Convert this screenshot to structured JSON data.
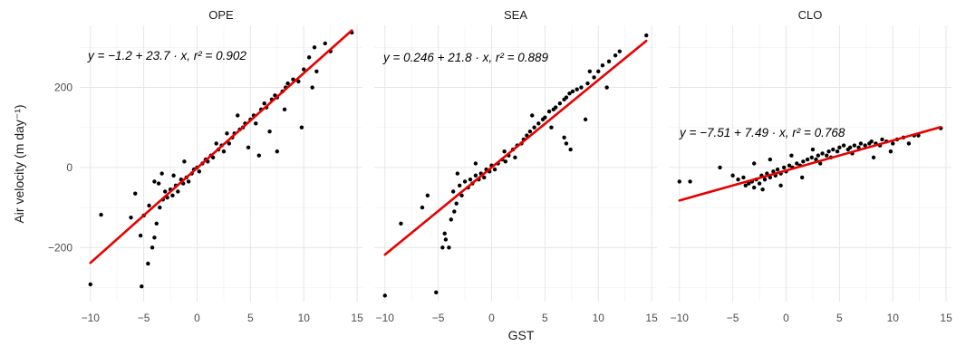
{
  "chart_data": {
    "type": "scatter",
    "xlabel": "GST",
    "ylabel": "Air velocity (m day⁻¹)",
    "xlim": [
      -11,
      15.5
    ],
    "ylim": [
      -335,
      355
    ],
    "xticks": [
      -10,
      -5,
      0,
      5,
      10,
      15
    ],
    "yticks": [
      -200,
      0,
      200
    ],
    "grid": true,
    "panels": [
      {
        "title": "OPE",
        "equation": "y = −1.2 + 23.7 · x,  r² = 0.902",
        "intercept": -1.2,
        "slope": 23.7,
        "r2": 0.902,
        "fit_range": [
          -10,
          14.5
        ],
        "points": [
          [
            -10,
            -292
          ],
          [
            -9,
            -118
          ],
          [
            -5.2,
            -297
          ],
          [
            -5,
            -120
          ],
          [
            -5.3,
            -170
          ],
          [
            -4.6,
            -240
          ],
          [
            -4.2,
            -200
          ],
          [
            -4,
            -175
          ],
          [
            -4.5,
            -95
          ],
          [
            -3.8,
            -140
          ],
          [
            -3.5,
            -100
          ],
          [
            -3.2,
            -80
          ],
          [
            -3.6,
            -40
          ],
          [
            -3,
            -60
          ],
          [
            -2.8,
            -75
          ],
          [
            -2.5,
            -55
          ],
          [
            -2.3,
            -70
          ],
          [
            -2,
            -45
          ],
          [
            -1.8,
            -60
          ],
          [
            -1.5,
            -30
          ],
          [
            -1.3,
            -40
          ],
          [
            -1,
            -25
          ],
          [
            -0.8,
            -35
          ],
          [
            -0.5,
            -15
          ],
          [
            -0.3,
            -5
          ],
          [
            0,
            0
          ],
          [
            0.2,
            -10
          ],
          [
            0.5,
            10
          ],
          [
            0.8,
            20
          ],
          [
            1,
            15
          ],
          [
            1.3,
            30
          ],
          [
            1.5,
            25
          ],
          [
            2,
            45
          ],
          [
            2.3,
            55
          ],
          [
            2.5,
            40
          ],
          [
            3,
            60
          ],
          [
            3.3,
            75
          ],
          [
            3.5,
            85
          ],
          [
            4,
            95
          ],
          [
            4.3,
            100
          ],
          [
            4.5,
            110
          ],
          [
            5,
            120
          ],
          [
            5.3,
            130
          ],
          [
            5.5,
            110
          ],
          [
            6,
            145
          ],
          [
            6.3,
            160
          ],
          [
            6.5,
            150
          ],
          [
            7,
            170
          ],
          [
            7.3,
            180
          ],
          [
            7.5,
            175
          ],
          [
            8,
            190
          ],
          [
            8.3,
            200
          ],
          [
            8.5,
            210
          ],
          [
            9,
            220
          ],
          [
            9.5,
            215
          ],
          [
            10,
            245
          ],
          [
            10.5,
            275
          ],
          [
            11,
            300
          ],
          [
            12,
            310
          ],
          [
            12.5,
            290
          ],
          [
            14.5,
            337
          ],
          [
            5.8,
            30
          ],
          [
            7.5,
            40
          ],
          [
            9.8,
            100
          ],
          [
            4.8,
            50
          ],
          [
            6.8,
            90
          ],
          [
            10.8,
            200
          ],
          [
            11.2,
            240
          ],
          [
            -5.8,
            -65
          ],
          [
            -6.2,
            -125
          ],
          [
            -4,
            -35
          ],
          [
            -2.2,
            -20
          ],
          [
            1.8,
            60
          ],
          [
            2.8,
            85
          ],
          [
            -3.3,
            -15
          ],
          [
            -1.2,
            15
          ],
          [
            3.8,
            130
          ],
          [
            8.2,
            145
          ]
        ]
      },
      {
        "title": "SEA",
        "equation": "y = 0.246 + 21.8 · x,  r² = 0.889",
        "intercept": 0.246,
        "slope": 21.8,
        "r2": 0.889,
        "fit_range": [
          -10,
          14.5
        ],
        "points": [
          [
            -10,
            -320
          ],
          [
            -8.5,
            -140
          ],
          [
            -5.2,
            -312
          ],
          [
            -4.6,
            -200
          ],
          [
            -4.3,
            -180
          ],
          [
            -4.4,
            -165
          ],
          [
            -4,
            -200
          ],
          [
            -3.8,
            -130
          ],
          [
            -3.5,
            -110
          ],
          [
            -3.3,
            -90
          ],
          [
            -3.6,
            -60
          ],
          [
            -3,
            -45
          ],
          [
            -2.8,
            -70
          ],
          [
            -2.5,
            -35
          ],
          [
            -2.2,
            -50
          ],
          [
            -2,
            -30
          ],
          [
            -1.8,
            -40
          ],
          [
            -1.5,
            -20
          ],
          [
            -1.2,
            -30
          ],
          [
            -1,
            -15
          ],
          [
            -0.7,
            -25
          ],
          [
            -0.5,
            -5
          ],
          [
            -0.2,
            -10
          ],
          [
            0,
            5
          ],
          [
            0.3,
            -5
          ],
          [
            0.6,
            10
          ],
          [
            1,
            20
          ],
          [
            1.3,
            15
          ],
          [
            1.6,
            30
          ],
          [
            2,
            45
          ],
          [
            2.4,
            55
          ],
          [
            2.8,
            60
          ],
          [
            3,
            70
          ],
          [
            3.3,
            80
          ],
          [
            3.6,
            90
          ],
          [
            4,
            100
          ],
          [
            4.4,
            110
          ],
          [
            4.8,
            120
          ],
          [
            5,
            125
          ],
          [
            5.4,
            140
          ],
          [
            5.8,
            145
          ],
          [
            6,
            150
          ],
          [
            6.4,
            160
          ],
          [
            6.8,
            170
          ],
          [
            7,
            175
          ],
          [
            7.3,
            185
          ],
          [
            7.6,
            190
          ],
          [
            8,
            195
          ],
          [
            8.4,
            200
          ],
          [
            9,
            210
          ],
          [
            9.6,
            225
          ],
          [
            10,
            240
          ],
          [
            10.4,
            255
          ],
          [
            11,
            265
          ],
          [
            11.6,
            280
          ],
          [
            12,
            290
          ],
          [
            14.5,
            330
          ],
          [
            7,
            60
          ],
          [
            7.4,
            45
          ],
          [
            6.8,
            75
          ],
          [
            8.8,
            120
          ],
          [
            -6,
            -70
          ],
          [
            -6.5,
            -100
          ],
          [
            -3.2,
            -15
          ],
          [
            1.2,
            40
          ],
          [
            3.8,
            130
          ],
          [
            5.6,
            100
          ],
          [
            9.2,
            240
          ],
          [
            10.8,
            200
          ],
          [
            -1.5,
            10
          ],
          [
            2.2,
            25
          ]
        ]
      },
      {
        "title": "CLO",
        "equation": "y = −7.51 + 7.49 · x,  r² = 0.768",
        "intercept": -7.51,
        "slope": 7.49,
        "r2": 0.768,
        "fit_range": [
          -10,
          14.5
        ],
        "points": [
          [
            -10,
            -35
          ],
          [
            -9,
            -35
          ],
          [
            -6.2,
            0
          ],
          [
            -5,
            -20
          ],
          [
            -4.5,
            -30
          ],
          [
            -4,
            -25
          ],
          [
            -3.8,
            -45
          ],
          [
            -3.5,
            -40
          ],
          [
            -3.2,
            -35
          ],
          [
            -3,
            -50
          ],
          [
            -2.8,
            -30
          ],
          [
            -2.5,
            -40
          ],
          [
            -2.3,
            -20
          ],
          [
            -2,
            -30
          ],
          [
            -1.8,
            -15
          ],
          [
            -1.5,
            -25
          ],
          [
            -1.2,
            -10
          ],
          [
            -1,
            -20
          ],
          [
            -0.8,
            -5
          ],
          [
            -0.5,
            -15
          ],
          [
            -0.2,
            0
          ],
          [
            0,
            -10
          ],
          [
            0.3,
            5
          ],
          [
            0.6,
            0
          ],
          [
            1,
            10
          ],
          [
            1.3,
            5
          ],
          [
            1.6,
            15
          ],
          [
            2,
            20
          ],
          [
            2.4,
            25
          ],
          [
            2.8,
            20
          ],
          [
            3,
            30
          ],
          [
            3.4,
            35
          ],
          [
            3.8,
            30
          ],
          [
            4,
            40
          ],
          [
            4.4,
            45
          ],
          [
            4.8,
            40
          ],
          [
            5,
            50
          ],
          [
            5.4,
            55
          ],
          [
            5.8,
            45
          ],
          [
            6,
            50
          ],
          [
            6.4,
            55
          ],
          [
            6.8,
            50
          ],
          [
            7,
            60
          ],
          [
            7.4,
            55
          ],
          [
            7.8,
            60
          ],
          [
            8,
            65
          ],
          [
            8.4,
            60
          ],
          [
            8.8,
            55
          ],
          [
            9,
            70
          ],
          [
            9.4,
            65
          ],
          [
            10,
            60
          ],
          [
            10.4,
            70
          ],
          [
            11,
            75
          ],
          [
            11.5,
            60
          ],
          [
            12,
            80
          ],
          [
            12.4,
            80
          ],
          [
            14.5,
            98
          ],
          [
            -3,
            10
          ],
          [
            -1.5,
            20
          ],
          [
            0.5,
            30
          ],
          [
            2.5,
            45
          ],
          [
            4.2,
            25
          ],
          [
            6.2,
            35
          ],
          [
            8.2,
            25
          ],
          [
            9.8,
            40
          ],
          [
            -2.2,
            -55
          ],
          [
            -0.5,
            -45
          ],
          [
            1.5,
            -25
          ],
          [
            3.2,
            10
          ]
        ]
      }
    ],
    "colors": {
      "points": "#000000",
      "fit": "#e60000"
    }
  }
}
